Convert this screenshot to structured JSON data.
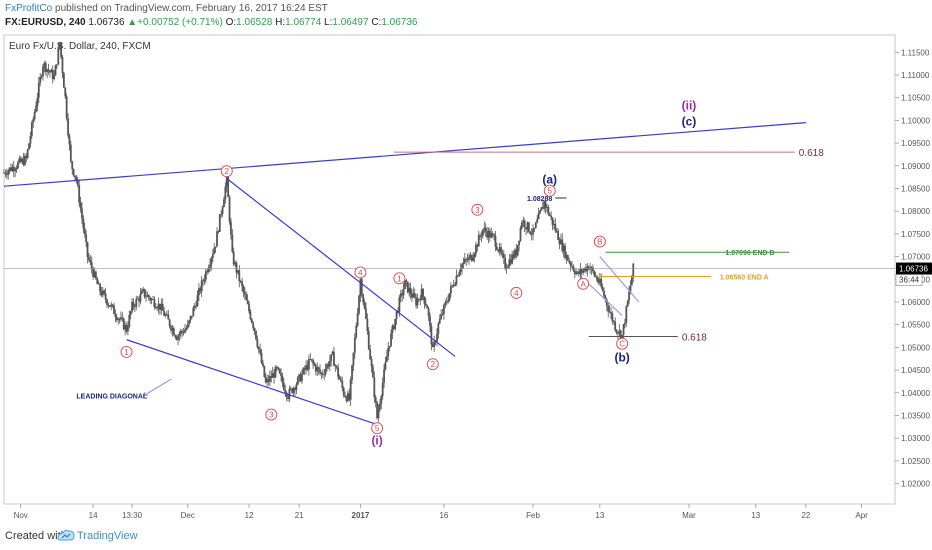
{
  "header": {
    "author": "FxProfitCo",
    "published_text": " published on TradingView.com, February 16, 2017 16:24 EST",
    "symbol": "FX:EURUSD, 240",
    "last": "1.06736",
    "change": "+0.00752 (+0.71%)",
    "o_label": "O:",
    "o_value": "1.06528",
    "h_label": "H:",
    "h_value": "1.06774",
    "l_label": "L:",
    "l_value": "1.06497",
    "c_label": "C:",
    "c_value": "1.06736"
  },
  "chart_title": "Euro Fx/U.S. Dollar, 240, FXCM",
  "footer": {
    "created_with": "Created with",
    "brand": "TradingView"
  },
  "colors": {
    "candle": "#555555",
    "trendline": "#3a3ad6",
    "wave_label": "#d94a4a",
    "purple": "#9c2a9c",
    "navy": "#1a237e",
    "end_b": "#3f8f3f",
    "end_a": "#e0a020",
    "fib": "#7a2a3a",
    "price_tag_current": "#000000"
  },
  "chart_data": {
    "type": "candlestick",
    "title": "Euro Fx/U.S. Dollar, 240, FXCM",
    "y_ticks": [
      "1.11500",
      "1.11000",
      "1.10500",
      "1.10000",
      "1.09500",
      "1.09000",
      "1.08500",
      "1.08000",
      "1.07500",
      "1.07000",
      "1.06500",
      "1.06000",
      "1.05500",
      "1.05000",
      "1.04500",
      "1.04000",
      "1.03500",
      "1.03000",
      "1.02500",
      "1.02000"
    ],
    "ylim": [
      1.0155,
      1.1188
    ],
    "x_ticks": [
      {
        "label": "Nov",
        "d": 0
      },
      {
        "label": "14",
        "d": 13
      },
      {
        "label": "13:30",
        "d": 20
      },
      {
        "label": "Dec",
        "d": 30
      },
      {
        "label": "12",
        "d": 41
      },
      {
        "label": "21",
        "d": 50
      },
      {
        "label": "2017",
        "d": 61
      },
      {
        "label": "16",
        "d": 76
      },
      {
        "label": "Feb",
        "d": 92
      },
      {
        "label": "13",
        "d": 104
      },
      {
        "label": "Mar",
        "d": 120
      },
      {
        "label": "13",
        "d": 132
      },
      {
        "label": "22",
        "d": 141
      },
      {
        "label": "Apr",
        "d": 151
      }
    ],
    "x_domain": [
      -3,
      157
    ],
    "current_price": "1.06736",
    "current_value": 1.06736,
    "countdown": "36:44",
    "anchors": [
      [
        -3,
        1.0885
      ],
      [
        1,
        1.0915
      ],
      [
        4,
        1.1125
      ],
      [
        6,
        1.1095
      ],
      [
        7,
        1.117
      ],
      [
        8,
        1.105
      ],
      [
        9,
        1.0905
      ],
      [
        10,
        1.087
      ],
      [
        12,
        1.07
      ],
      [
        14,
        1.063
      ],
      [
        17,
        1.0575
      ],
      [
        19,
        1.054
      ],
      [
        20,
        1.059
      ],
      [
        22,
        1.062
      ],
      [
        25,
        1.059
      ],
      [
        28,
        1.0525
      ],
      [
        30,
        1.0545
      ],
      [
        32,
        1.062
      ],
      [
        35,
        1.073
      ],
      [
        37,
        1.087
      ],
      [
        38,
        1.07
      ],
      [
        40,
        1.062
      ],
      [
        42,
        1.054
      ],
      [
        44,
        1.042
      ],
      [
        46,
        1.045
      ],
      [
        48,
        1.0395
      ],
      [
        50,
        1.043
      ],
      [
        52,
        1.047
      ],
      [
        54,
        1.044
      ],
      [
        56,
        1.048
      ],
      [
        58,
        1.04
      ],
      [
        59,
        1.0385
      ],
      [
        61,
        1.065
      ],
      [
        62,
        1.056
      ],
      [
        64,
        1.0345
      ],
      [
        66,
        1.05
      ],
      [
        68,
        1.06
      ],
      [
        69,
        1.064
      ],
      [
        71,
        1.06
      ],
      [
        72,
        1.062
      ],
      [
        73,
        1.059
      ],
      [
        74,
        1.049
      ],
      [
        75,
        1.055
      ],
      [
        77,
        1.062
      ],
      [
        79,
        1.068
      ],
      [
        81,
        1.07
      ],
      [
        83,
        1.076
      ],
      [
        85,
        1.074
      ],
      [
        87,
        1.068
      ],
      [
        89,
        1.071
      ],
      [
        90,
        1.078
      ],
      [
        92,
        1.075
      ],
      [
        94,
        1.082
      ],
      [
        96,
        1.076
      ],
      [
        98,
        1.07
      ],
      [
        100,
        1.066
      ],
      [
        102,
        1.068
      ],
      [
        104,
        1.064
      ],
      [
        106,
        1.057
      ],
      [
        107,
        1.054
      ],
      [
        108,
        1.0525
      ],
      [
        109,
        1.06
      ],
      [
        110,
        1.0674
      ]
    ],
    "trendlines": [
      {
        "name": "upper-blue",
        "from": [
          -3,
          1.0855
        ],
        "to": [
          141,
          1.0995
        ],
        "color": "#3a3ad6"
      },
      {
        "name": "diagonal-upper",
        "from": [
          37,
          1.0872
        ],
        "to": [
          78,
          1.048
        ],
        "color": "#3a3ad6"
      },
      {
        "name": "diagonal-lower",
        "from": [
          19,
          1.0517
        ],
        "to": [
          64,
          1.033
        ],
        "color": "#3a3ad6"
      },
      {
        "name": "wave-c-channel-upper",
        "from": [
          104,
          1.07
        ],
        "to": [
          111,
          1.06
        ],
        "color": "#9aa0e6"
      },
      {
        "name": "wave-c-channel-lower",
        "from": [
          102,
          1.064
        ],
        "to": [
          108,
          1.057
        ],
        "color": "#9aa0e6"
      }
    ],
    "levels": [
      {
        "label": "0.618",
        "value": 1.093,
        "from": 67,
        "to": 139,
        "color": "#c07080"
      },
      {
        "label": "1.07096 END B",
        "value": 1.07096,
        "from": 105,
        "to": 138,
        "color": "#3f8f3f"
      },
      {
        "label": "1.06560 END A",
        "value": 1.0656,
        "from": 104,
        "to": 124,
        "color": "#e0a020"
      },
      {
        "label": "0.618",
        "value": 1.0524,
        "from": 102,
        "to": 118,
        "color": "#555555"
      },
      {
        "label": "1.08288",
        "value": 1.0829,
        "from": 96,
        "to": 98,
        "color": "#1a237e"
      }
    ],
    "wave_labels": [
      {
        "text": "1",
        "d": 19,
        "v": 1.049,
        "circled": true,
        "color": "#d94a4a"
      },
      {
        "text": "2",
        "d": 37,
        "v": 1.0888,
        "circled": true,
        "color": "#d94a4a"
      },
      {
        "text": "3",
        "d": 45,
        "v": 1.0352,
        "circled": true,
        "color": "#d94a4a"
      },
      {
        "text": "4",
        "d": 61,
        "v": 1.0665,
        "circled": true,
        "color": "#d94a4a"
      },
      {
        "text": "5",
        "d": 64,
        "v": 1.0322,
        "circled": true,
        "color": "#d94a4a"
      },
      {
        "text": "(i)",
        "d": 64,
        "v": 1.0295,
        "circled": false,
        "color": "#9c2a9c"
      },
      {
        "text": "1",
        "d": 68,
        "v": 1.0652,
        "circled": true,
        "color": "#d94a4a"
      },
      {
        "text": "2",
        "d": 74,
        "v": 1.0463,
        "circled": true,
        "color": "#d94a4a"
      },
      {
        "text": "3",
        "d": 82,
        "v": 1.0803,
        "circled": true,
        "color": "#d94a4a"
      },
      {
        "text": "4",
        "d": 89,
        "v": 1.062,
        "circled": true,
        "color": "#d94a4a"
      },
      {
        "text": "5",
        "d": 95,
        "v": 1.0845,
        "circled": true,
        "color": "#d94a4a"
      },
      {
        "text": "(a)",
        "d": 95,
        "v": 1.087,
        "circled": false,
        "color": "#1a237e"
      },
      {
        "text": "A",
        "d": 101,
        "v": 1.064,
        "circled": true,
        "color": "#d94a4a"
      },
      {
        "text": "B",
        "d": 104,
        "v": 1.0733,
        "circled": true,
        "color": "#d94a4a"
      },
      {
        "text": "C",
        "d": 108,
        "v": 1.0508,
        "circled": true,
        "color": "#d94a4a"
      },
      {
        "text": "(b)",
        "d": 108,
        "v": 1.0478,
        "circled": false,
        "color": "#1a237e"
      },
      {
        "text": "(c)",
        "d": 120,
        "v": 1.0997,
        "circled": false,
        "color": "#1a237e"
      },
      {
        "text": "(ii)",
        "d": 120,
        "v": 1.1033,
        "circled": false,
        "color": "#9c2a9c"
      }
    ],
    "annotation": {
      "text": "LEADING DIAGONAL",
      "d": 10,
      "v": 1.0387,
      "color": "#1a237e",
      "arrow_from": [
        27,
        1.043
      ],
      "arrow_to": [
        22,
        1.0393
      ]
    }
  }
}
